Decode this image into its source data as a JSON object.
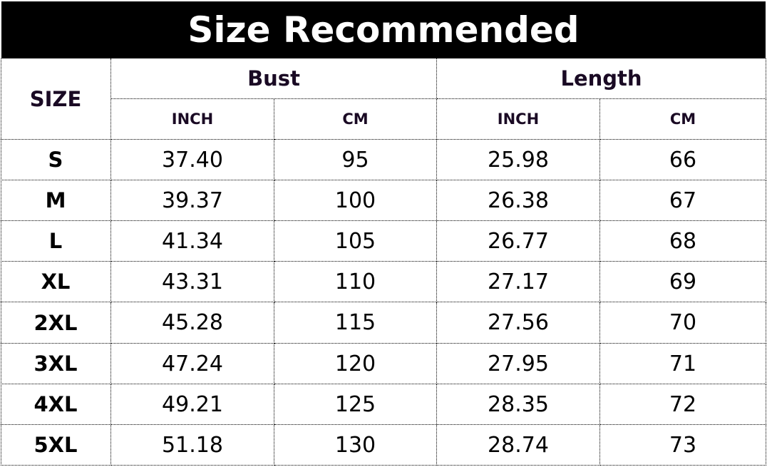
{
  "title": "Size Recommended",
  "headers": {
    "size": "SIZE",
    "groups": [
      "Bust",
      "Length"
    ],
    "units": [
      "INCH",
      "CM",
      "INCH",
      "CM"
    ]
  },
  "rows": [
    [
      "S",
      "37.40",
      "95",
      "25.98",
      "66"
    ],
    [
      "M",
      "39.37",
      "100",
      "26.38",
      "67"
    ],
    [
      "L",
      "41.34",
      "105",
      "26.77",
      "68"
    ],
    [
      "XL",
      "43.31",
      "110",
      "27.17",
      "69"
    ],
    [
      "2XL",
      "45.28",
      "115",
      "27.56",
      "70"
    ],
    [
      "3XL",
      "47.24",
      "120",
      "27.95",
      "71"
    ],
    [
      "4XL",
      "49.21",
      "125",
      "28.35",
      "72"
    ],
    [
      "5XL",
      "51.18",
      "130",
      "28.74",
      "73"
    ]
  ]
}
